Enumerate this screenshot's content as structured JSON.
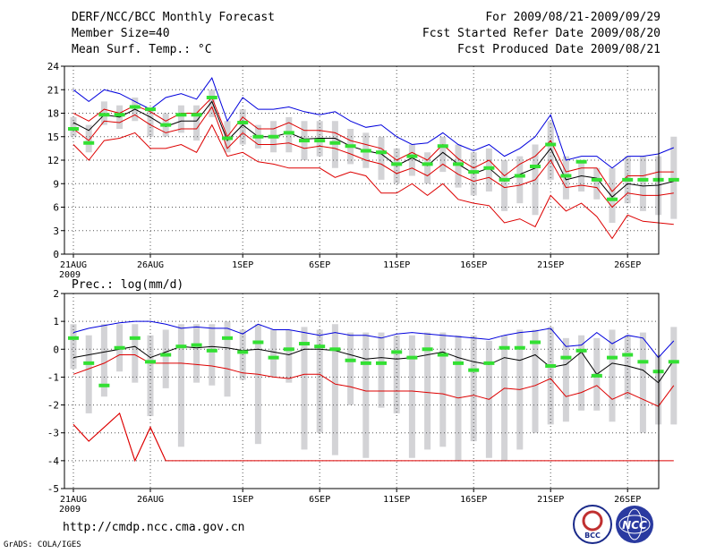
{
  "header": {
    "title": "DERF/NCC/BCC Monthly Forecast",
    "member_size": "Member Size=40",
    "variable": "Mean Surf. Temp.: °C",
    "period": "For 2009/08/21-2009/09/29",
    "started": "Fcst Started Refer Date 2009/08/20",
    "produced": "Fcst Produced Date 2009/08/21"
  },
  "footer": {
    "url": "http://cmdp.ncc.cma.gov.cn",
    "grads": "GrADS: COLA/IGES",
    "logo_left_text": "BCC",
    "logo_right_text": "NCC"
  },
  "colors": {
    "box": "#d3d3d6",
    "median": "#33e033",
    "mean": "#000000",
    "max": "#0000dd",
    "min": "#dd0000",
    "grid": "#555555"
  },
  "chart_data": [
    {
      "type": "line",
      "name": "temperature",
      "title": "Mean Surf. Temp.: °C",
      "ylim": [
        0,
        24
      ],
      "yticks": [
        0,
        3,
        6,
        9,
        12,
        15,
        18,
        21,
        24
      ],
      "xticks": [
        {
          "day": 0,
          "label": "21AUG",
          "sub": "2009"
        },
        {
          "day": 5,
          "label": "26AUG"
        },
        {
          "day": 11,
          "label": "1SEP"
        },
        {
          "day": 16,
          "label": "6SEP"
        },
        {
          "day": 21,
          "label": "11SEP"
        },
        {
          "day": 26,
          "label": "16SEP"
        },
        {
          "day": 31,
          "label": "21SEP"
        },
        {
          "day": 36,
          "label": "26SEP"
        }
      ],
      "series": [
        {
          "name": "max",
          "values": [
            21.0,
            19.5,
            21.0,
            20.5,
            19.5,
            18.5,
            20.0,
            20.5,
            19.8,
            22.5,
            17.0,
            20.0,
            18.5,
            18.5,
            18.8,
            18.2,
            17.8,
            18.2,
            17.0,
            16.2,
            16.5,
            15.0,
            14.0,
            14.2,
            15.5,
            14.0,
            13.2,
            14.0,
            12.5,
            13.5,
            15.0,
            17.8,
            12.0,
            12.5,
            12.5,
            11.0,
            12.5,
            12.5,
            12.8,
            13.6
          ]
        },
        {
          "name": "mean_plus_sd",
          "values": [
            18.0,
            17.0,
            18.5,
            18.0,
            19.0,
            18.2,
            17.0,
            18.0,
            18.0,
            20.0,
            15.0,
            17.5,
            16.0,
            16.0,
            16.8,
            15.8,
            15.8,
            15.5,
            14.5,
            14.0,
            13.5,
            12.0,
            13.0,
            12.0,
            14.0,
            12.2,
            11.0,
            12.0,
            10.0,
            11.5,
            12.5,
            14.5,
            10.5,
            11.0,
            11.0,
            8.0,
            10.0,
            10.0,
            10.5,
            10.5
          ]
        },
        {
          "name": "mean",
          "values": [
            16.8,
            15.8,
            17.8,
            17.5,
            18.5,
            17.5,
            16.3,
            17.0,
            17.0,
            19.5,
            14.5,
            16.5,
            15.0,
            15.0,
            15.5,
            14.7,
            14.8,
            14.8,
            13.8,
            13.2,
            12.8,
            11.3,
            12.3,
            11.3,
            13.0,
            11.5,
            10.3,
            11.0,
            9.3,
            10.2,
            11.0,
            13.5,
            9.5,
            10.0,
            9.7,
            7.3,
            9.0,
            8.7,
            8.8,
            9.3
          ]
        },
        {
          "name": "mean_minus_sd",
          "values": [
            16.0,
            14.5,
            17.0,
            16.8,
            17.8,
            16.5,
            15.5,
            16.0,
            16.0,
            18.8,
            13.5,
            15.5,
            14.0,
            14.0,
            14.2,
            13.5,
            13.8,
            13.5,
            12.8,
            12.0,
            11.5,
            10.3,
            11.0,
            10.0,
            11.5,
            10.2,
            9.3,
            9.8,
            8.5,
            8.8,
            9.5,
            12.0,
            8.5,
            8.8,
            8.5,
            6.0,
            7.8,
            7.5,
            7.5,
            7.8
          ]
        },
        {
          "name": "min",
          "values": [
            14.0,
            12.0,
            14.5,
            14.8,
            15.5,
            13.5,
            13.5,
            14.0,
            13.0,
            16.5,
            12.5,
            13.0,
            11.8,
            11.5,
            11.0,
            11.0,
            11.0,
            9.8,
            10.5,
            10.0,
            7.8,
            7.8,
            9.0,
            7.5,
            9.0,
            7.0,
            6.5,
            6.2,
            4.0,
            4.5,
            3.5,
            7.5,
            5.5,
            6.5,
            4.8,
            2.0,
            5.0,
            4.2,
            4.0,
            3.8
          ]
        }
      ],
      "boxes": [
        [
          15.0,
          17.5
        ],
        [
          13.0,
          16.5
        ],
        [
          16.5,
          19.5
        ],
        [
          16.0,
          19.0
        ],
        [
          17.0,
          20.0
        ],
        [
          15.0,
          18.5
        ],
        [
          15.0,
          18.0
        ],
        [
          15.5,
          19.0
        ],
        [
          14.5,
          19.0
        ],
        [
          17.5,
          21.0
        ],
        [
          13.0,
          17.0
        ],
        [
          14.0,
          18.5
        ],
        [
          13.5,
          16.5
        ],
        [
          13.0,
          17.0
        ],
        [
          13.0,
          17.5
        ],
        [
          12.0,
          17.0
        ],
        [
          12.5,
          17.0
        ],
        [
          11.0,
          17.0
        ],
        [
          11.5,
          16.0
        ],
        [
          11.0,
          15.5
        ],
        [
          9.5,
          15.0
        ],
        [
          9.0,
          13.5
        ],
        [
          10.0,
          14.0
        ],
        [
          9.0,
          13.0
        ],
        [
          10.5,
          15.0
        ],
        [
          8.5,
          14.0
        ],
        [
          7.5,
          13.0
        ],
        [
          8.0,
          13.5
        ],
        [
          5.5,
          12.0
        ],
        [
          6.5,
          12.5
        ],
        [
          5.0,
          14.0
        ],
        [
          9.5,
          17.0
        ],
        [
          7.0,
          12.5
        ],
        [
          8.0,
          12.0
        ],
        [
          7.0,
          11.0
        ],
        [
          4.0,
          11.0
        ],
        [
          6.5,
          12.5
        ],
        [
          5.5,
          12.5
        ],
        [
          5.0,
          12.5
        ],
        [
          4.5,
          15.0
        ]
      ],
      "medians": [
        16.0,
        14.2,
        17.8,
        17.8,
        18.8,
        18.5,
        16.5,
        17.8,
        17.8,
        20.0,
        14.8,
        16.8,
        15.0,
        15.0,
        15.5,
        14.5,
        14.5,
        14.2,
        13.8,
        13.2,
        13.0,
        11.5,
        12.5,
        11.5,
        13.8,
        11.5,
        10.5,
        11.0,
        9.5,
        10.0,
        11.2,
        14.0,
        10.0,
        11.8,
        9.5,
        7.0,
        9.5,
        9.5,
        9.5,
        9.5
      ]
    },
    {
      "type": "line",
      "name": "precipitation",
      "title": "Prec.: log(mm/d)",
      "ylim": [
        -5,
        2
      ],
      "yticks": [
        -5,
        -4,
        -3,
        -2,
        -1,
        0,
        1,
        2
      ],
      "xticks": [
        {
          "day": 0,
          "label": "21AUG",
          "sub": "2009"
        },
        {
          "day": 5,
          "label": "26AUG"
        },
        {
          "day": 11,
          "label": "1SEP"
        },
        {
          "day": 16,
          "label": "6SEP"
        },
        {
          "day": 21,
          "label": "11SEP"
        },
        {
          "day": 26,
          "label": "16SEP"
        },
        {
          "day": 31,
          "label": "21SEP"
        },
        {
          "day": 36,
          "label": "26SEP"
        }
      ],
      "series": [
        {
          "name": "max",
          "values": [
            0.6,
            0.75,
            0.85,
            0.95,
            1.0,
            1.0,
            0.9,
            0.75,
            0.8,
            0.75,
            0.75,
            0.55,
            0.9,
            0.7,
            0.7,
            0.6,
            0.5,
            0.6,
            0.5,
            0.5,
            0.4,
            0.55,
            0.6,
            0.55,
            0.5,
            0.45,
            0.4,
            0.35,
            0.5,
            0.6,
            0.65,
            0.75,
            0.1,
            0.15,
            0.6,
            0.2,
            0.5,
            0.4,
            -0.3,
            0.3
          ]
        },
        {
          "name": "mean",
          "values": [
            -0.3,
            -0.2,
            -0.1,
            0.0,
            0.1,
            -0.3,
            -0.1,
            0.1,
            0.05,
            0.1,
            0.05,
            -0.05,
            0.0,
            -0.1,
            -0.2,
            0.0,
            0.0,
            -0.05,
            -0.2,
            -0.35,
            -0.3,
            -0.35,
            -0.3,
            -0.2,
            -0.1,
            -0.3,
            -0.45,
            -0.55,
            -0.3,
            -0.4,
            -0.2,
            -0.65,
            -0.55,
            -0.1,
            -0.9,
            -0.5,
            -0.6,
            -0.75,
            -1.2,
            -0.4
          ]
        },
        {
          "name": "min",
          "values": [
            -2.7,
            -3.3,
            -2.8,
            -2.3,
            -4.0,
            -2.8,
            -4.0,
            -4.0,
            -4.0,
            -4.0,
            -4.0,
            -4.0,
            -4.0,
            -4.0,
            -4.0,
            -4.0,
            -4.0,
            -4.0,
            -4.0,
            -4.0,
            -4.0,
            -4.0,
            -4.0,
            -4.0,
            -4.0,
            -4.0,
            -4.0,
            -4.0,
            -4.0,
            -4.0,
            -4.0,
            -4.0,
            -4.0,
            -4.0,
            -4.0,
            -4.0,
            -4.0,
            -4.0,
            -4.0,
            -4.0
          ]
        },
        {
          "name": "lower_band",
          "values": [
            -2.7,
            -3.3,
            -2.8,
            -2.3,
            -4.0,
            -2.8,
            -4.0,
            null,
            null,
            null,
            null,
            null,
            null,
            null,
            null,
            null,
            null,
            null,
            null,
            null,
            null,
            null,
            null,
            null,
            null,
            null,
            null,
            null,
            null,
            null,
            null,
            null,
            null,
            null,
            null,
            null,
            null,
            null,
            null,
            null
          ]
        },
        {
          "name": "mean_minus_sd",
          "values": [
            -0.9,
            -0.7,
            -0.5,
            -0.2,
            -0.2,
            -0.5,
            -0.5,
            -0.5,
            -0.55,
            -0.6,
            -0.7,
            -0.85,
            -0.9,
            -1.0,
            -1.05,
            -0.9,
            -0.9,
            -1.25,
            -1.35,
            -1.5,
            -1.5,
            -1.5,
            -1.5,
            -1.55,
            -1.6,
            -1.75,
            -1.65,
            -1.8,
            -1.4,
            -1.45,
            -1.3,
            -1.05,
            -1.7,
            -1.55,
            -1.3,
            -1.8,
            -1.55,
            -1.8,
            -2.05,
            -1.3
          ]
        }
      ],
      "boxes": [
        [
          -0.7,
          0.9
        ],
        [
          -2.3,
          0.5
        ],
        [
          -1.7,
          0.9
        ],
        [
          -0.8,
          0.9
        ],
        [
          -1.2,
          0.9
        ],
        [
          -2.4,
          0.5
        ],
        [
          -1.4,
          0.7
        ],
        [
          -3.5,
          0.9
        ],
        [
          -1.2,
          0.9
        ],
        [
          -1.3,
          0.9
        ],
        [
          -1.7,
          1.0
        ],
        [
          -1.1,
          0.7
        ],
        [
          -3.4,
          0.9
        ],
        [
          -1.0,
          0.7
        ],
        [
          -1.2,
          0.7
        ],
        [
          -3.6,
          0.8
        ],
        [
          -3.0,
          0.7
        ],
        [
          -3.8,
          0.9
        ],
        [
          -2.0,
          0.6
        ],
        [
          -3.9,
          0.6
        ],
        [
          -2.1,
          0.6
        ],
        [
          -2.3,
          0.5
        ],
        [
          -3.9,
          0.5
        ],
        [
          -3.6,
          0.6
        ],
        [
          -3.5,
          0.6
        ],
        [
          -4.0,
          0.5
        ],
        [
          -3.3,
          0.5
        ],
        [
          -3.9,
          0.3
        ],
        [
          -4.0,
          0.5
        ],
        [
          -3.6,
          0.7
        ],
        [
          -3.0,
          0.7
        ],
        [
          -2.7,
          0.8
        ],
        [
          -2.6,
          0.4
        ],
        [
          -2.2,
          0.5
        ],
        [
          -2.2,
          0.4
        ],
        [
          -2.6,
          0.7
        ],
        [
          -1.8,
          0.5
        ],
        [
          -3.0,
          0.6
        ],
        [
          -2.7,
          -0.2
        ],
        [
          -2.7,
          0.8
        ]
      ],
      "medians": [
        0.4,
        -0.5,
        -1.3,
        0.05,
        0.4,
        -0.45,
        -0.2,
        0.1,
        0.15,
        -0.05,
        0.4,
        -0.1,
        0.25,
        -0.3,
        0.0,
        0.2,
        0.1,
        0.0,
        -0.4,
        -0.5,
        -0.5,
        -0.1,
        -0.3,
        0.0,
        -0.2,
        -0.5,
        -0.75,
        -0.5,
        0.05,
        0.05,
        0.25,
        -0.6,
        -0.3,
        -0.05,
        -0.95,
        -0.3,
        -0.2,
        -0.45,
        -0.8,
        -0.45
      ]
    }
  ]
}
